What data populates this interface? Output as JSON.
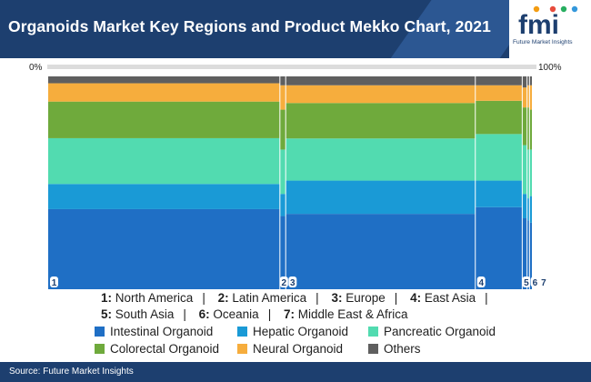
{
  "header": {
    "title": "Organoids Market Key Regions and Product Mekko Chart, 2021",
    "logo_text": "fmi",
    "logo_subtext": "Future Market Insights"
  },
  "footer": {
    "source": "Source: Future Market Insights"
  },
  "colors": {
    "Intestinal Organoid": "#1f6fc5",
    "Hepatic Organoid": "#1a9ad6",
    "Pancreatic Organoid": "#52dbb0",
    "Colorectal Organoid": "#6faa3c",
    "Neural Organoid": "#f6ad3d",
    "Others": "#5f5f5f"
  },
  "chart_data": {
    "type": "mekko",
    "x_axis": {
      "min_label": "0%",
      "max_label": "100%"
    },
    "categories": [
      {
        "id": "1",
        "name": "North America",
        "width_pct": 47.9
      },
      {
        "id": "2",
        "name": "Latin America",
        "width_pct": 1.2
      },
      {
        "id": "3",
        "name": "Europe",
        "width_pct": 39.2
      },
      {
        "id": "4",
        "name": "East Asia",
        "width_pct": 9.7
      },
      {
        "id": "5",
        "name": "South Asia",
        "width_pct": 1.0
      },
      {
        "id": "6",
        "name": "Oceania",
        "width_pct": 0.5
      },
      {
        "id": "7",
        "name": "Middle East & Africa",
        "width_pct": 0.5
      }
    ],
    "series": [
      {
        "name": "Intestinal Organoid",
        "values": [
          35,
          33,
          34,
          37,
          32,
          31,
          30
        ]
      },
      {
        "name": "Hepatic Organoid",
        "values": [
          11,
          10,
          15,
          12,
          11,
          10,
          12
        ]
      },
      {
        "name": "Pancreatic Organoid",
        "values": [
          20,
          20,
          19,
          21,
          22,
          22,
          21
        ]
      },
      {
        "name": "Colorectal Organoid",
        "values": [
          16,
          18,
          16,
          15,
          17,
          19,
          18
        ]
      },
      {
        "name": "Neural Organoid",
        "values": [
          8,
          11,
          8,
          7,
          9,
          10,
          11
        ]
      },
      {
        "name": "Others",
        "values": [
          3,
          4,
          4,
          4,
          5,
          4,
          4
        ]
      }
    ]
  }
}
